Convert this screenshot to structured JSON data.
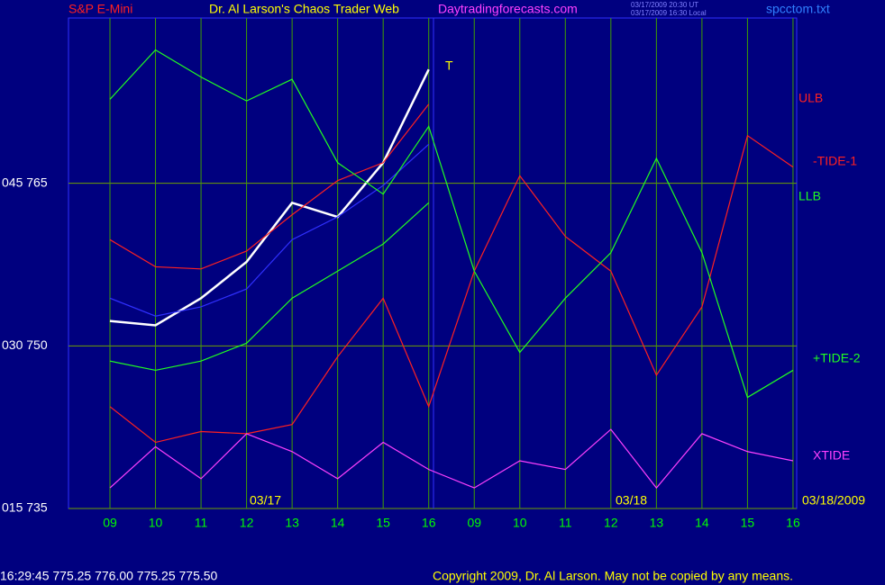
{
  "chart_data": {
    "type": "line",
    "title": "Dr. Al Larson's Chaos Trader Web",
    "symbol": "S&P E-Mini",
    "site": "Daytradingforecasts.com",
    "timestamps": [
      "03/17/2009 20:30 UT",
      "03/17/2009 16:30 Local"
    ],
    "file": "spcctom.txt",
    "categories": [
      "09",
      "10",
      "11",
      "12",
      "13",
      "14",
      "15",
      "16",
      "09",
      "10",
      "11",
      "12",
      "13",
      "14",
      "15",
      "16"
    ],
    "date_labels": [
      "03/17",
      "03/18",
      "03/18/2009"
    ],
    "marker_label": "T",
    "ylim": [
      735,
      780.25
    ],
    "yticks": [
      {
        "value": 735,
        "label": "015  735"
      },
      {
        "value": 750,
        "label": "030  750"
      },
      {
        "value": 765,
        "label": "045  765"
      }
    ],
    "grid": true,
    "series": [
      {
        "color": "#ffffff",
        "values": [
          752.3,
          751.9,
          754.4,
          757.75,
          763.2,
          761.9,
          766.9,
          775.5,
          null,
          null,
          null,
          null,
          null,
          null,
          null,
          null
        ]
      },
      {
        "color": "#3030ff",
        "values": [
          754.4,
          752.75,
          753.6,
          755.25,
          759.8,
          761.9,
          764.8,
          768.6,
          null,
          null,
          null,
          null,
          null,
          null,
          null,
          null
        ]
      },
      {
        "name": "ULB",
        "color": "#ff2020",
        "values": [
          759.8,
          757.3,
          757.1,
          758.75,
          762.1,
          765.25,
          766.9,
          772.3,
          null,
          null,
          null,
          null,
          null,
          null,
          null,
          null
        ]
      },
      {
        "name": "-TIDE-1",
        "color": "#ff2020",
        "values": [
          744.4,
          741.1,
          742.1,
          741.9,
          742.75,
          749,
          754.4,
          744.4,
          756.9,
          765.7,
          760.1,
          756.9,
          747.3,
          753.6,
          769.4,
          766.5
        ]
      },
      {
        "name": "LLB",
        "color": "#20ff20",
        "values": [
          748.6,
          747.75,
          748.6,
          750.25,
          754.4,
          756.9,
          759.4,
          763.2,
          null,
          null,
          null,
          null,
          null,
          null,
          null,
          null
        ]
      },
      {
        "name": "+TIDE-2",
        "color": "#20ff20",
        "values": [
          772.75,
          777.3,
          774.8,
          772.6,
          774.6,
          766.9,
          764,
          770.25,
          756.9,
          749.4,
          754.4,
          758.6,
          767.3,
          758.6,
          745.25,
          747.75
        ]
      },
      {
        "name": "XTIDE",
        "color": "#ff40ff",
        "values": [
          736.9,
          740.7,
          737.75,
          741.9,
          740.25,
          737.75,
          741.1,
          738.6,
          736.9,
          739.4,
          738.6,
          742.3,
          736.9,
          741.9,
          740.25,
          739.4
        ]
      }
    ],
    "quote": "16:29:45  775.25 776.00 775.25 775.50",
    "copyright": "Copyright 2009, Dr. Al Larson. May not be copied by any means."
  }
}
